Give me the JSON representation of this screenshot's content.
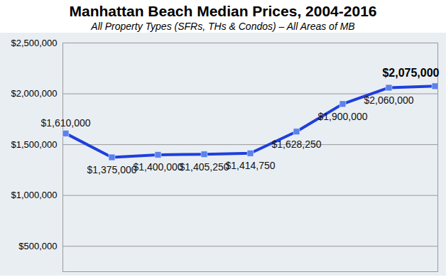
{
  "chart_data": {
    "type": "line",
    "title": "Manhattan Beach Median Prices, 2004-2016",
    "subtitle": "All Property Types (SFRs, THs & Condos) – All Areas of MB",
    "categories": [
      null,
      null,
      null,
      null,
      null,
      null,
      null,
      null,
      null
    ],
    "values": [
      1610000,
      1375000,
      1400000,
      1405250,
      1414750,
      1628250,
      1900000,
      2060000,
      2075000
    ],
    "value_labels": [
      "$1,610,000",
      "$1,375,000",
      "$1,400,000",
      "$1,405,250",
      "$1,414,750",
      "$1,628,250",
      "$1,900,000",
      "$2,060,000",
      "$2,075,000"
    ],
    "color": "#1f3fdc",
    "marker": "square",
    "ylim": [
      250000,
      2500000
    ],
    "yticks": [
      {
        "value": 500000,
        "label": "$500,000"
      },
      {
        "value": 1000000,
        "label": "$1,000,000"
      },
      {
        "value": 1500000,
        "label": "$1,500,000"
      },
      {
        "value": 2000000,
        "label": "$2,000,000"
      },
      {
        "value": 2500000,
        "label": "$2,500,000"
      }
    ],
    "grid": true,
    "data_labels": true,
    "tick_labels": "y"
  }
}
